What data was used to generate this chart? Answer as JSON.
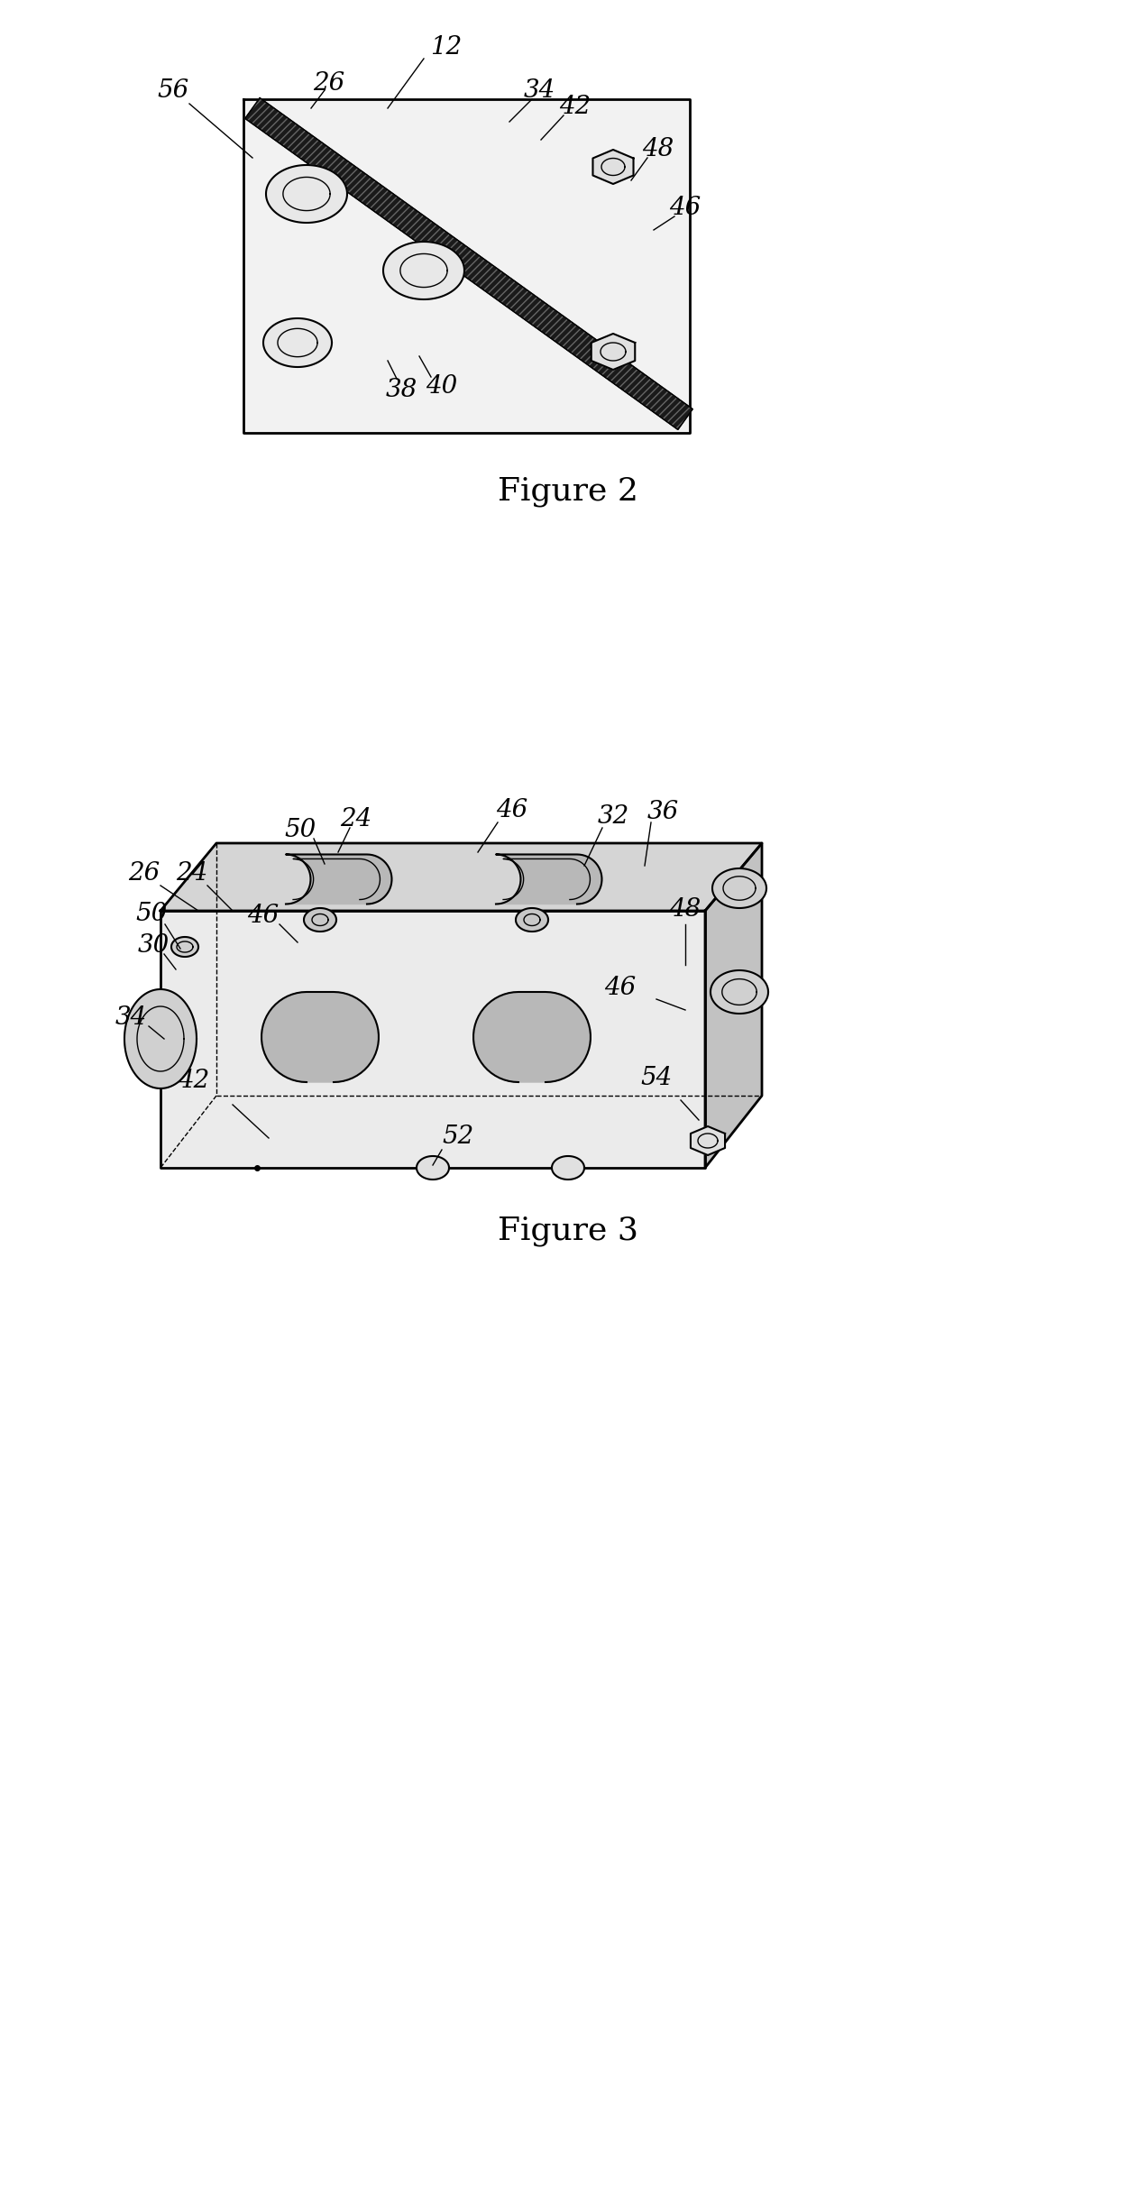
{
  "fig_width": 12.61,
  "fig_height": 24.23,
  "dpi": 100,
  "background_color": "#ffffff",
  "line_color": "#000000",
  "fig2_caption": "Figure 2",
  "fig3_caption": "Figure 3",
  "caption_fontsize": 26,
  "label_fontsize": 20
}
